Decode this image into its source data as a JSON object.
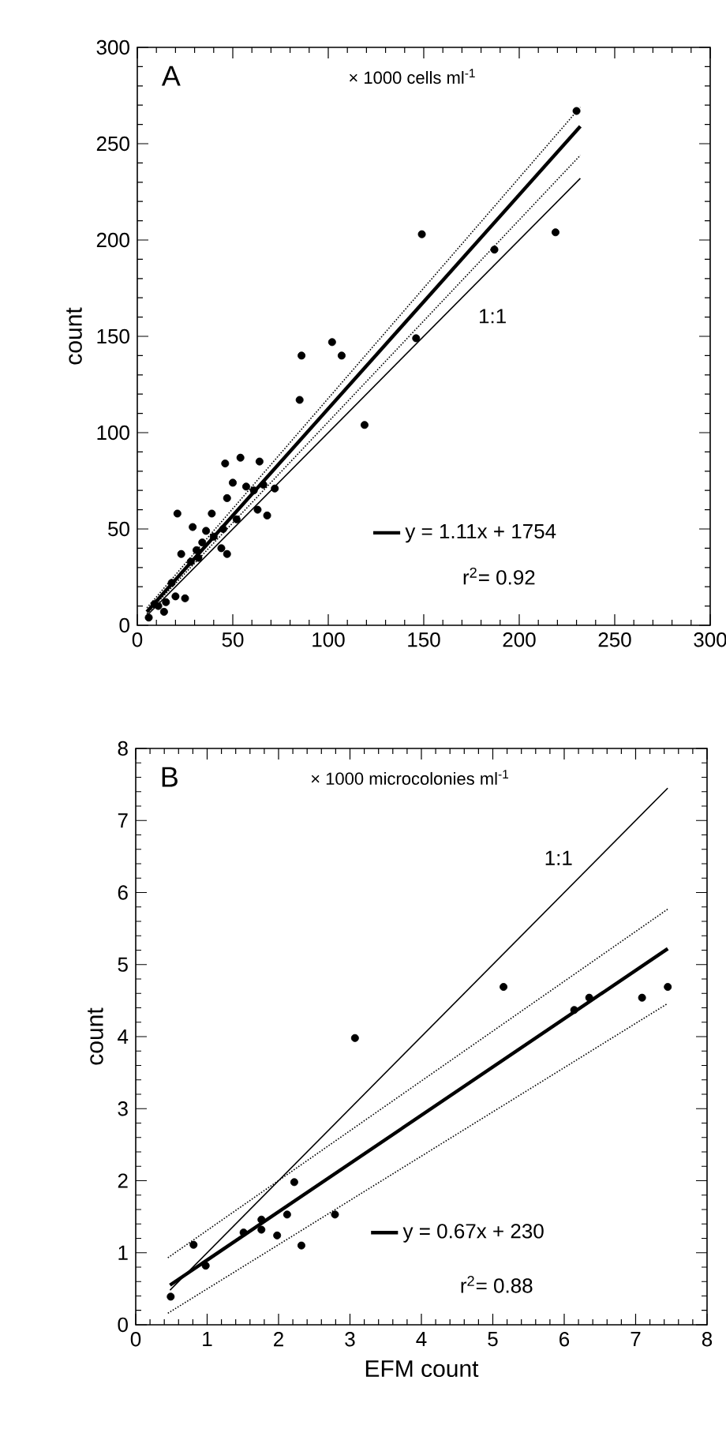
{
  "chart_data": [
    {
      "type": "scatter",
      "title": "A",
      "subtitle": "× 1000 cells ml$^{-1}$",
      "ylabel": "count",
      "xlim": [
        0,
        300
      ],
      "ylim": [
        0,
        300
      ],
      "xticks": [
        0,
        50,
        100,
        150,
        200,
        250,
        300
      ],
      "yticks": [
        0,
        50,
        100,
        150,
        200,
        250,
        300
      ],
      "legend": "bottom right",
      "annotations": [
        "r$^{2}$= 0.92",
        "1:1"
      ],
      "series": [
        {
          "type": "scatter",
          "marker": "circle",
          "color": "#000000",
          "x": [
            230,
            149,
            187,
            219,
            146,
            102,
            107,
            86,
            85,
            119,
            46,
            54,
            64,
            21,
            39,
            29,
            68,
            50,
            47,
            61,
            72,
            63,
            47,
            44,
            36,
            31,
            23,
            25,
            20,
            14,
            6,
            9,
            15,
            11,
            57,
            66,
            34,
            40,
            45,
            52,
            28,
            32,
            18
          ],
          "values": [
            267,
            203,
            195,
            204,
            149,
            147,
            140,
            140,
            117,
            104,
            84,
            87,
            85,
            58,
            58,
            51,
            57,
            74,
            66,
            70,
            71,
            60,
            37,
            40,
            49,
            39,
            37,
            14,
            15,
            7,
            4,
            11,
            12,
            10,
            72,
            73,
            43,
            46,
            50,
            55,
            33,
            35,
            22
          ]
        },
        {
          "type": "line",
          "marker": "none",
          "line_style": "solid",
          "color": "#000000",
          "x": [
            5,
            232
          ],
          "values": [
            5,
            232
          ]
        },
        {
          "type": "line",
          "marker": "none",
          "line_style": "solid",
          "color": "#000000",
          "name": "y = 1.11x + 1754",
          "x": [
            5,
            232
          ],
          "values": [
            7,
            259
          ]
        },
        {
          "type": "line",
          "marker": "none",
          "line_style": "dotted",
          "color": "#000000",
          "x": [
            5,
            232
          ],
          "values": [
            9,
            269
          ]
        },
        {
          "type": "line",
          "marker": "none",
          "line_style": "dotted",
          "color": "#000000",
          "x": [
            5,
            232
          ],
          "values": [
            6,
            244
          ]
        }
      ]
    },
    {
      "type": "scatter",
      "title": "B",
      "subtitle": "× 1000 microcolonies ml$^{-1}$",
      "xlabel": "EFM count",
      "ylabel": "count",
      "xlim": [
        0,
        8
      ],
      "ylim": [
        0,
        8
      ],
      "xticks": [
        0,
        1,
        2,
        3,
        4,
        5,
        6,
        7,
        8
      ],
      "yticks": [
        0,
        1,
        2,
        3,
        4,
        5,
        6,
        7,
        8
      ],
      "legend": "bottom right",
      "annotations": [
        "r$^{2}$= 0.88",
        "1:1"
      ],
      "series": [
        {
          "type": "scatter",
          "marker": "circle",
          "color": "#000000",
          "x": [
            0.49,
            0.81,
            0.98,
            1.51,
            1.76,
            1.76,
            1.98,
            2.12,
            2.22,
            2.32,
            2.79,
            3.07,
            5.15,
            6.14,
            6.35,
            7.09,
            7.45
          ],
          "values": [
            0.39,
            1.11,
            0.82,
            1.28,
            1.46,
            1.32,
            1.24,
            1.53,
            1.98,
            1.1,
            1.53,
            3.98,
            4.69,
            4.37,
            4.54,
            4.54,
            4.69
          ]
        },
        {
          "type": "line",
          "marker": "none",
          "line_style": "solid",
          "color": "#000000",
          "x": [
            0.48,
            7.45
          ],
          "values": [
            0.48,
            7.45
          ]
        },
        {
          "type": "line",
          "marker": "none",
          "line_style": "solid",
          "color": "#000000",
          "name": "y = 0.67x + 230",
          "x": [
            0.48,
            7.45
          ],
          "values": [
            0.55,
            5.22
          ]
        },
        {
          "type": "line",
          "marker": "none",
          "line_style": "dotted",
          "color": "#000000",
          "x": [
            0.45,
            7.45
          ],
          "values": [
            0.93,
            5.77
          ]
        },
        {
          "type": "line",
          "marker": "none",
          "line_style": "dotted",
          "color": "#000000",
          "x": [
            0.45,
            7.45
          ],
          "values": [
            0.16,
            4.46
          ]
        }
      ]
    }
  ]
}
